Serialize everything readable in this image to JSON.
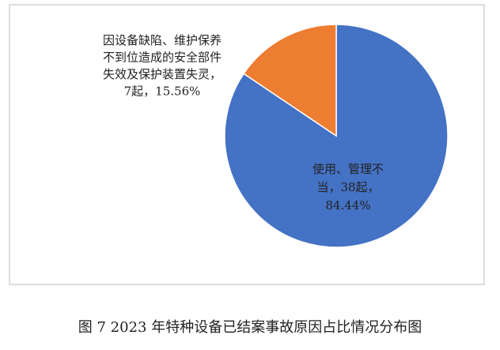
{
  "chart_data": {
    "type": "pie",
    "values": [
      84.44,
      15.56
    ],
    "colors": [
      "#4472c4",
      "#ed7d31"
    ],
    "value_labels": [
      [
        "使用、管理不",
        "当，38起，",
        "84.44%"
      ],
      [
        "因设备缺陷、维护保养",
        "不到位造成的安全部件",
        "失效及保护装置失灵，",
        "7起，15.56%"
      ]
    ],
    "caption": "图 7   2023 年特种设备已结案事故原因占比情况分布图"
  }
}
